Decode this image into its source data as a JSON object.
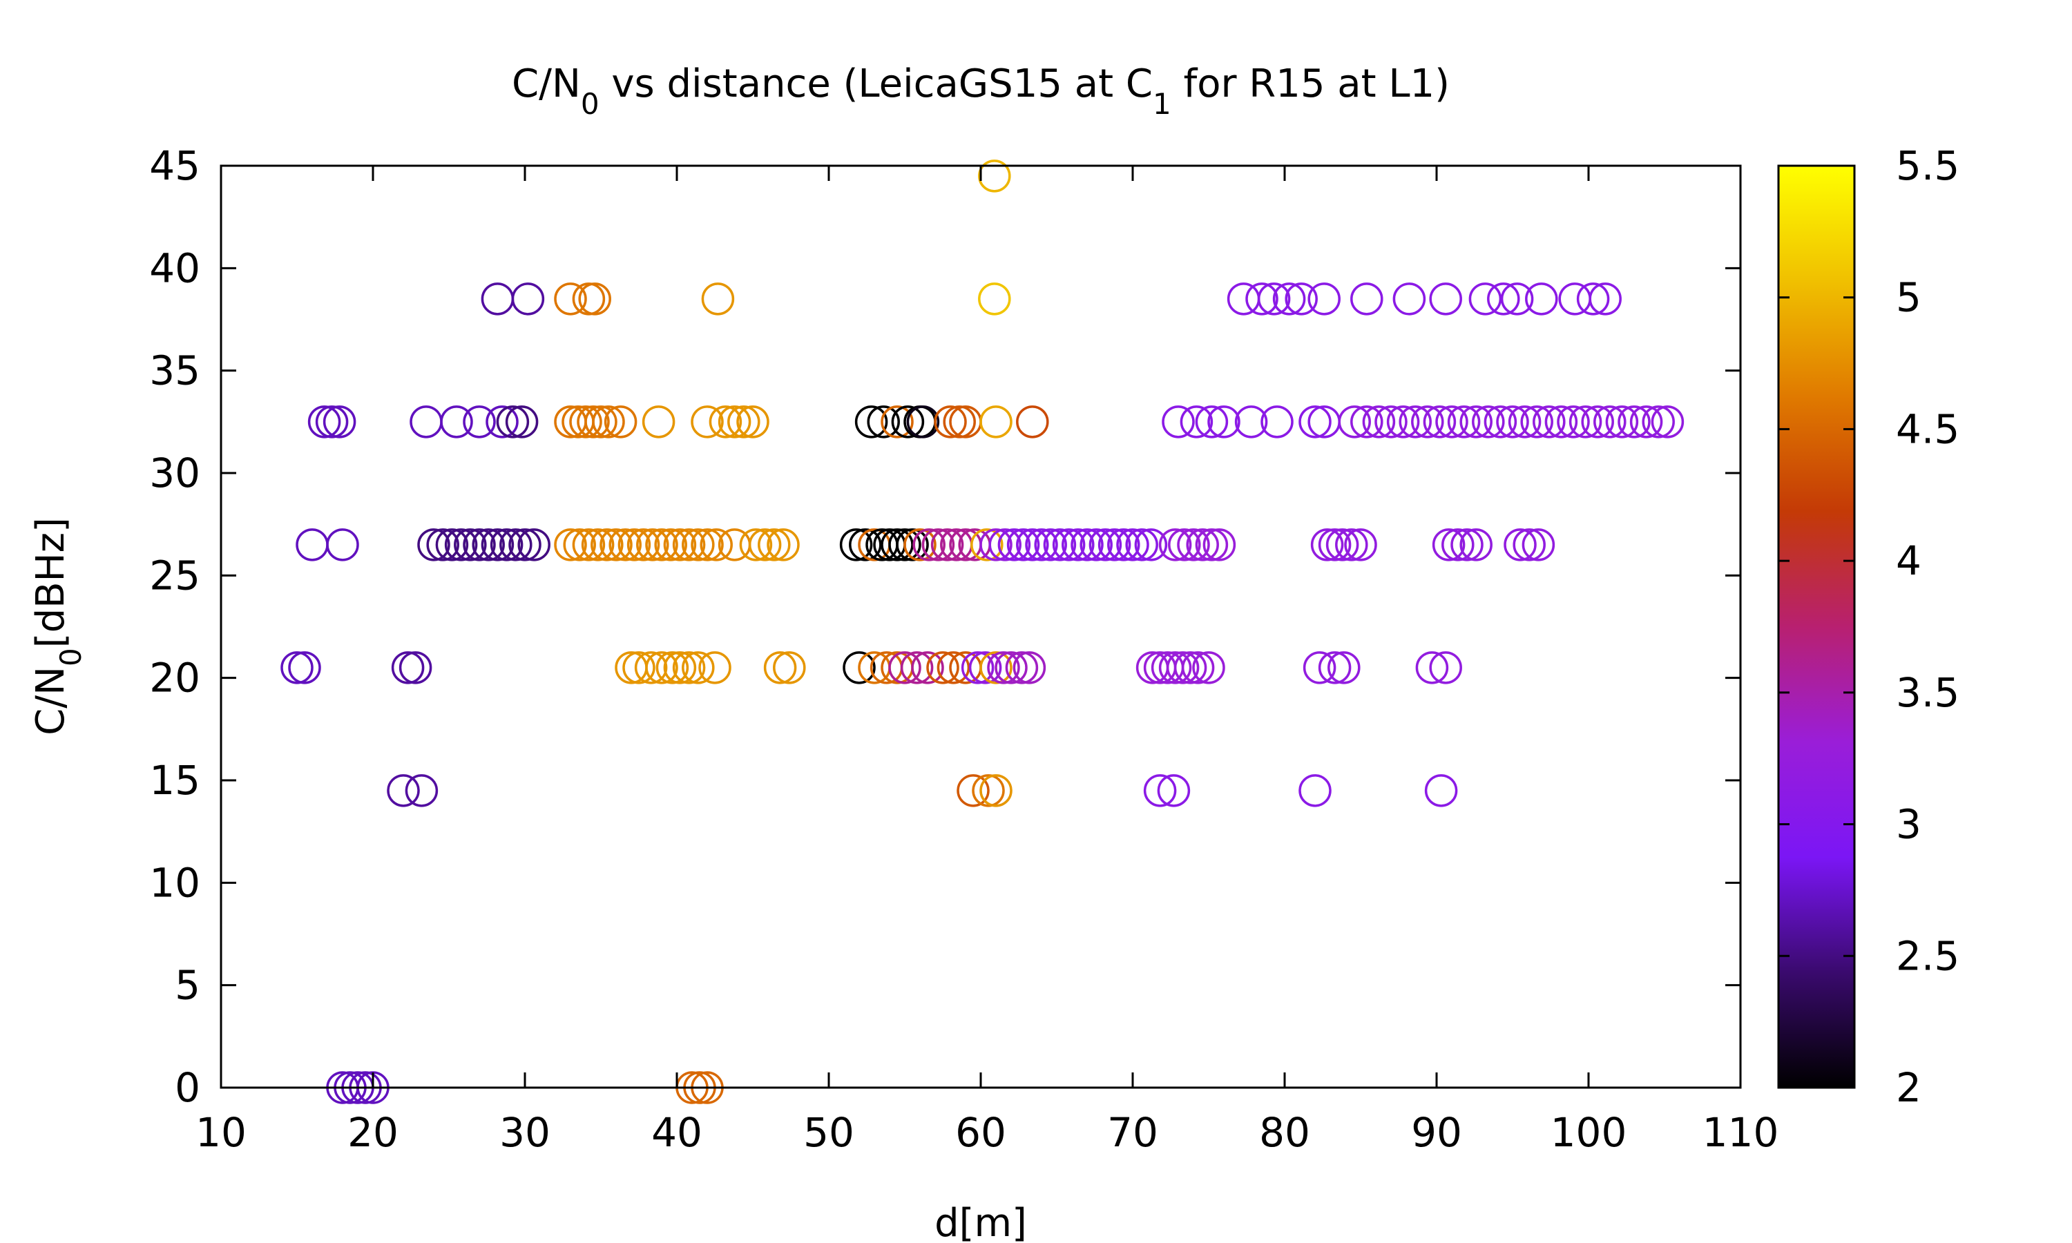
{
  "chart_data": {
    "type": "scatter",
    "title": {
      "parts": [
        {
          "text": "C/N"
        },
        {
          "text": "0",
          "sub": true
        },
        {
          "text": " vs distance (LeicaGS15 at C"
        },
        {
          "text": "1",
          "sub": true
        },
        {
          "text": " for R15 at L1)"
        }
      ]
    },
    "xlabel": "d[m]",
    "ylabel": {
      "parts": [
        {
          "text": "C/N"
        },
        {
          "text": "0",
          "sub": true
        },
        {
          "text": "[dBHz]"
        }
      ]
    },
    "xlim": [
      10,
      110
    ],
    "ylim": [
      0,
      45
    ],
    "xticks": [
      "10",
      "20",
      "30",
      "40",
      "50",
      "60",
      "70",
      "80",
      "90",
      "100",
      "110"
    ],
    "yticks": [
      "0",
      "5",
      "10",
      "15",
      "20",
      "25",
      "30",
      "35",
      "40",
      "45"
    ],
    "grid": false,
    "legend": "none",
    "colorbar": {
      "range": [
        2,
        5.5
      ],
      "ticks": [
        "2",
        "2.5",
        "3",
        "3.5",
        "4",
        "4.5",
        "5",
        "5.5"
      ],
      "palette": [
        "#000000",
        "#3a0a6e",
        "#7b16f5",
        "#9a1ed8",
        "#b82070",
        "#c43a06",
        "#e07a00",
        "#f0c000",
        "#ffff00"
      ]
    },
    "marker": "open-circle",
    "points": [
      [
        18.0,
        0,
        2.7
      ],
      [
        18.5,
        0,
        2.7
      ],
      [
        19.0,
        0,
        2.7
      ],
      [
        19.5,
        0,
        2.7
      ],
      [
        20.0,
        0,
        2.7
      ],
      [
        41.0,
        0,
        4.5
      ],
      [
        41.5,
        0,
        4.5
      ],
      [
        42.0,
        0,
        4.5
      ],
      [
        22.0,
        14.5,
        2.6
      ],
      [
        23.2,
        14.5,
        2.6
      ],
      [
        59.5,
        14.5,
        4.4
      ],
      [
        60.5,
        14.5,
        4.6
      ],
      [
        61.0,
        14.5,
        4.8
      ],
      [
        71.8,
        14.5,
        3.1
      ],
      [
        72.7,
        14.5,
        3.1
      ],
      [
        82.0,
        14.5,
        3.1
      ],
      [
        90.3,
        14.5,
        3.1
      ],
      [
        15.0,
        20.5,
        2.7
      ],
      [
        15.5,
        20.5,
        2.7
      ],
      [
        22.3,
        20.5,
        2.6
      ],
      [
        22.8,
        20.5,
        2.6
      ],
      [
        37.0,
        20.5,
        4.8
      ],
      [
        37.5,
        20.5,
        4.8
      ],
      [
        38.3,
        20.5,
        4.8
      ],
      [
        39.0,
        20.5,
        4.8
      ],
      [
        39.7,
        20.5,
        4.8
      ],
      [
        40.2,
        20.5,
        4.8
      ],
      [
        40.8,
        20.5,
        4.8
      ],
      [
        41.4,
        20.5,
        4.8
      ],
      [
        42.5,
        20.5,
        4.8
      ],
      [
        46.8,
        20.5,
        4.8
      ],
      [
        47.4,
        20.5,
        4.8
      ],
      [
        52.0,
        20.5,
        2.0
      ],
      [
        53.0,
        20.5,
        4.6
      ],
      [
        53.8,
        20.5,
        4.5
      ],
      [
        54.5,
        20.5,
        4.5
      ],
      [
        55.0,
        20.5,
        3.6
      ],
      [
        55.8,
        20.5,
        3.6
      ],
      [
        56.5,
        20.5,
        3.6
      ],
      [
        57.5,
        20.5,
        4.4
      ],
      [
        58.2,
        20.5,
        4.4
      ],
      [
        59.0,
        20.5,
        4.4
      ],
      [
        59.8,
        20.5,
        3.2
      ],
      [
        60.3,
        20.5,
        3.2
      ],
      [
        61.0,
        20.5,
        4.8
      ],
      [
        61.5,
        20.5,
        3.4
      ],
      [
        62.0,
        20.5,
        3.4
      ],
      [
        62.7,
        20.5,
        3.4
      ],
      [
        63.2,
        20.5,
        3.4
      ],
      [
        71.3,
        20.5,
        3.3
      ],
      [
        71.8,
        20.5,
        3.3
      ],
      [
        72.3,
        20.5,
        3.3
      ],
      [
        72.8,
        20.5,
        3.3
      ],
      [
        73.3,
        20.5,
        3.3
      ],
      [
        73.8,
        20.5,
        3.3
      ],
      [
        74.3,
        20.5,
        3.3
      ],
      [
        75.0,
        20.5,
        3.3
      ],
      [
        82.3,
        20.5,
        3.2
      ],
      [
        83.3,
        20.5,
        3.2
      ],
      [
        83.9,
        20.5,
        3.2
      ],
      [
        89.7,
        20.5,
        3.2
      ],
      [
        90.6,
        20.5,
        3.2
      ],
      [
        16.0,
        26.5,
        2.7
      ],
      [
        18.0,
        26.5,
        2.7
      ],
      [
        24.0,
        26.5,
        2.5
      ],
      [
        24.6,
        26.5,
        2.5
      ],
      [
        25.2,
        26.5,
        2.5
      ],
      [
        25.8,
        26.5,
        2.5
      ],
      [
        26.4,
        26.5,
        2.5
      ],
      [
        27.0,
        26.5,
        2.5
      ],
      [
        27.6,
        26.5,
        2.5
      ],
      [
        28.2,
        26.5,
        2.5
      ],
      [
        28.8,
        26.5,
        2.5
      ],
      [
        29.4,
        26.5,
        2.5
      ],
      [
        30.0,
        26.5,
        2.5
      ],
      [
        30.6,
        26.5,
        2.5
      ],
      [
        33.0,
        26.5,
        4.7
      ],
      [
        33.6,
        26.5,
        4.7
      ],
      [
        34.2,
        26.5,
        4.7
      ],
      [
        34.8,
        26.5,
        4.7
      ],
      [
        35.4,
        26.5,
        4.7
      ],
      [
        36.0,
        26.5,
        4.7
      ],
      [
        36.6,
        26.5,
        4.7
      ],
      [
        37.2,
        26.5,
        4.7
      ],
      [
        37.8,
        26.5,
        4.7
      ],
      [
        38.4,
        26.5,
        4.7
      ],
      [
        39.0,
        26.5,
        4.7
      ],
      [
        39.6,
        26.5,
        4.7
      ],
      [
        40.2,
        26.5,
        4.7
      ],
      [
        40.8,
        26.5,
        4.7
      ],
      [
        41.4,
        26.5,
        4.7
      ],
      [
        42.0,
        26.5,
        4.7
      ],
      [
        42.6,
        26.5,
        4.7
      ],
      [
        43.8,
        26.5,
        4.7
      ],
      [
        45.2,
        26.5,
        4.8
      ],
      [
        45.8,
        26.5,
        4.8
      ],
      [
        46.4,
        26.5,
        4.8
      ],
      [
        47.0,
        26.5,
        4.8
      ],
      [
        51.8,
        26.5,
        2.0
      ],
      [
        52.4,
        26.5,
        2.0
      ],
      [
        53.0,
        26.5,
        4.5
      ],
      [
        53.5,
        26.5,
        2.0
      ],
      [
        54.0,
        26.5,
        2.0
      ],
      [
        54.5,
        26.5,
        2.0
      ],
      [
        55.0,
        26.5,
        2.0
      ],
      [
        55.5,
        26.5,
        2.0
      ],
      [
        56.0,
        26.5,
        4.5
      ],
      [
        56.6,
        26.5,
        3.6
      ],
      [
        57.2,
        26.5,
        3.6
      ],
      [
        57.8,
        26.5,
        3.6
      ],
      [
        58.4,
        26.5,
        3.6
      ],
      [
        59.0,
        26.5,
        3.6
      ],
      [
        59.6,
        26.5,
        3.6
      ],
      [
        60.4,
        26.5,
        4.9
      ],
      [
        61.0,
        26.5,
        3.3
      ],
      [
        61.6,
        26.5,
        3.2
      ],
      [
        62.2,
        26.5,
        3.1
      ],
      [
        62.8,
        26.5,
        3.1
      ],
      [
        63.4,
        26.5,
        3.1
      ],
      [
        64.0,
        26.5,
        3.1
      ],
      [
        64.6,
        26.5,
        3.1
      ],
      [
        65.2,
        26.5,
        3.1
      ],
      [
        65.8,
        26.5,
        3.1
      ],
      [
        66.4,
        26.5,
        3.1
      ],
      [
        67.0,
        26.5,
        3.1
      ],
      [
        67.6,
        26.5,
        3.1
      ],
      [
        68.2,
        26.5,
        3.1
      ],
      [
        68.8,
        26.5,
        3.1
      ],
      [
        69.4,
        26.5,
        3.1
      ],
      [
        70.0,
        26.5,
        3.1
      ],
      [
        70.6,
        26.5,
        3.1
      ],
      [
        71.2,
        26.5,
        3.1
      ],
      [
        72.8,
        26.5,
        3.3
      ],
      [
        73.4,
        26.5,
        3.3
      ],
      [
        74.0,
        26.5,
        3.3
      ],
      [
        74.6,
        26.5,
        3.3
      ],
      [
        75.2,
        26.5,
        3.3
      ],
      [
        75.7,
        26.5,
        3.3
      ],
      [
        82.8,
        26.5,
        3.2
      ],
      [
        83.3,
        26.5,
        3.2
      ],
      [
        83.8,
        26.5,
        3.2
      ],
      [
        84.4,
        26.5,
        3.2
      ],
      [
        85.0,
        26.5,
        3.2
      ],
      [
        90.8,
        26.5,
        3.2
      ],
      [
        91.4,
        26.5,
        3.2
      ],
      [
        92.0,
        26.5,
        3.2
      ],
      [
        92.6,
        26.5,
        3.2
      ],
      [
        95.5,
        26.5,
        3.2
      ],
      [
        96.1,
        26.5,
        3.2
      ],
      [
        96.7,
        26.5,
        3.2
      ],
      [
        16.8,
        32.5,
        2.7
      ],
      [
        17.3,
        32.5,
        2.7
      ],
      [
        17.8,
        32.5,
        2.7
      ],
      [
        23.5,
        32.5,
        2.7
      ],
      [
        25.5,
        32.5,
        2.7
      ],
      [
        27.0,
        32.5,
        2.7
      ],
      [
        28.5,
        32.5,
        2.7
      ],
      [
        29.2,
        32.5,
        2.5
      ],
      [
        29.8,
        32.5,
        2.5
      ],
      [
        33.0,
        32.5,
        4.6
      ],
      [
        33.5,
        32.5,
        4.6
      ],
      [
        34.0,
        32.5,
        4.6
      ],
      [
        34.5,
        32.5,
        4.6
      ],
      [
        35.0,
        32.5,
        4.6
      ],
      [
        35.5,
        32.5,
        4.6
      ],
      [
        36.3,
        32.5,
        4.6
      ],
      [
        38.8,
        32.5,
        4.8
      ],
      [
        42.0,
        32.5,
        4.8
      ],
      [
        43.2,
        32.5,
        4.8
      ],
      [
        43.8,
        32.5,
        4.8
      ],
      [
        44.4,
        32.5,
        4.8
      ],
      [
        45.0,
        32.5,
        4.8
      ],
      [
        52.8,
        32.5,
        2.0
      ],
      [
        53.6,
        32.5,
        2.0
      ],
      [
        54.5,
        32.5,
        4.5
      ],
      [
        55.2,
        32.5,
        2.0
      ],
      [
        56.0,
        32.5,
        2.0
      ],
      [
        56.2,
        32.5,
        2.1
      ],
      [
        58.0,
        32.5,
        4.4
      ],
      [
        58.6,
        32.5,
        4.4
      ],
      [
        59.0,
        32.5,
        4.4
      ],
      [
        61.0,
        32.5,
        4.9
      ],
      [
        63.4,
        32.5,
        4.3
      ],
      [
        73.0,
        32.5,
        3.1
      ],
      [
        74.2,
        32.5,
        3.1
      ],
      [
        75.2,
        32.5,
        3.1
      ],
      [
        76.0,
        32.5,
        3.1
      ],
      [
        77.8,
        32.5,
        3.1
      ],
      [
        79.5,
        32.5,
        3.1
      ],
      [
        82.0,
        32.5,
        3.1
      ],
      [
        82.6,
        32.5,
        3.1
      ],
      [
        84.6,
        32.5,
        3.2
      ],
      [
        85.4,
        32.5,
        3.2
      ],
      [
        86.2,
        32.5,
        3.2
      ],
      [
        87.0,
        32.5,
        3.2
      ],
      [
        87.8,
        32.5,
        3.2
      ],
      [
        88.6,
        32.5,
        3.2
      ],
      [
        89.4,
        32.5,
        3.2
      ],
      [
        90.2,
        32.5,
        3.2
      ],
      [
        91.0,
        32.5,
        3.2
      ],
      [
        91.8,
        32.5,
        3.2
      ],
      [
        92.6,
        32.5,
        3.2
      ],
      [
        93.4,
        32.5,
        3.2
      ],
      [
        94.2,
        32.5,
        3.2
      ],
      [
        95.0,
        32.5,
        3.2
      ],
      [
        95.8,
        32.5,
        3.2
      ],
      [
        96.6,
        32.5,
        3.2
      ],
      [
        97.4,
        32.5,
        3.2
      ],
      [
        98.2,
        32.5,
        3.2
      ],
      [
        99.0,
        32.5,
        3.2
      ],
      [
        99.8,
        32.5,
        3.2
      ],
      [
        100.6,
        32.5,
        3.2
      ],
      [
        101.4,
        32.5,
        3.2
      ],
      [
        102.2,
        32.5,
        3.2
      ],
      [
        103.0,
        32.5,
        3.2
      ],
      [
        103.8,
        32.5,
        3.2
      ],
      [
        104.6,
        32.5,
        3.2
      ],
      [
        105.2,
        32.5,
        3.2
      ],
      [
        28.2,
        38.5,
        2.6
      ],
      [
        30.2,
        38.5,
        2.6
      ],
      [
        33.0,
        38.5,
        4.6
      ],
      [
        34.2,
        38.5,
        4.6
      ],
      [
        34.6,
        38.5,
        4.6
      ],
      [
        42.7,
        38.5,
        4.8
      ],
      [
        60.9,
        38.5,
        5.1
      ],
      [
        77.3,
        38.5,
        3.1
      ],
      [
        78.5,
        38.5,
        3.1
      ],
      [
        79.3,
        38.5,
        3.1
      ],
      [
        80.3,
        38.5,
        3.1
      ],
      [
        81.1,
        38.5,
        3.1
      ],
      [
        82.6,
        38.5,
        3.1
      ],
      [
        85.4,
        38.5,
        3.1
      ],
      [
        88.2,
        38.5,
        3.1
      ],
      [
        90.6,
        38.5,
        3.1
      ],
      [
        93.2,
        38.5,
        3.1
      ],
      [
        94.4,
        38.5,
        3.1
      ],
      [
        95.3,
        38.5,
        3.1
      ],
      [
        96.9,
        38.5,
        3.1
      ],
      [
        99.1,
        38.5,
        3.1
      ],
      [
        100.3,
        38.5,
        3.1
      ],
      [
        101.1,
        38.5,
        3.1
      ],
      [
        60.9,
        44.5,
        5.0
      ]
    ]
  }
}
